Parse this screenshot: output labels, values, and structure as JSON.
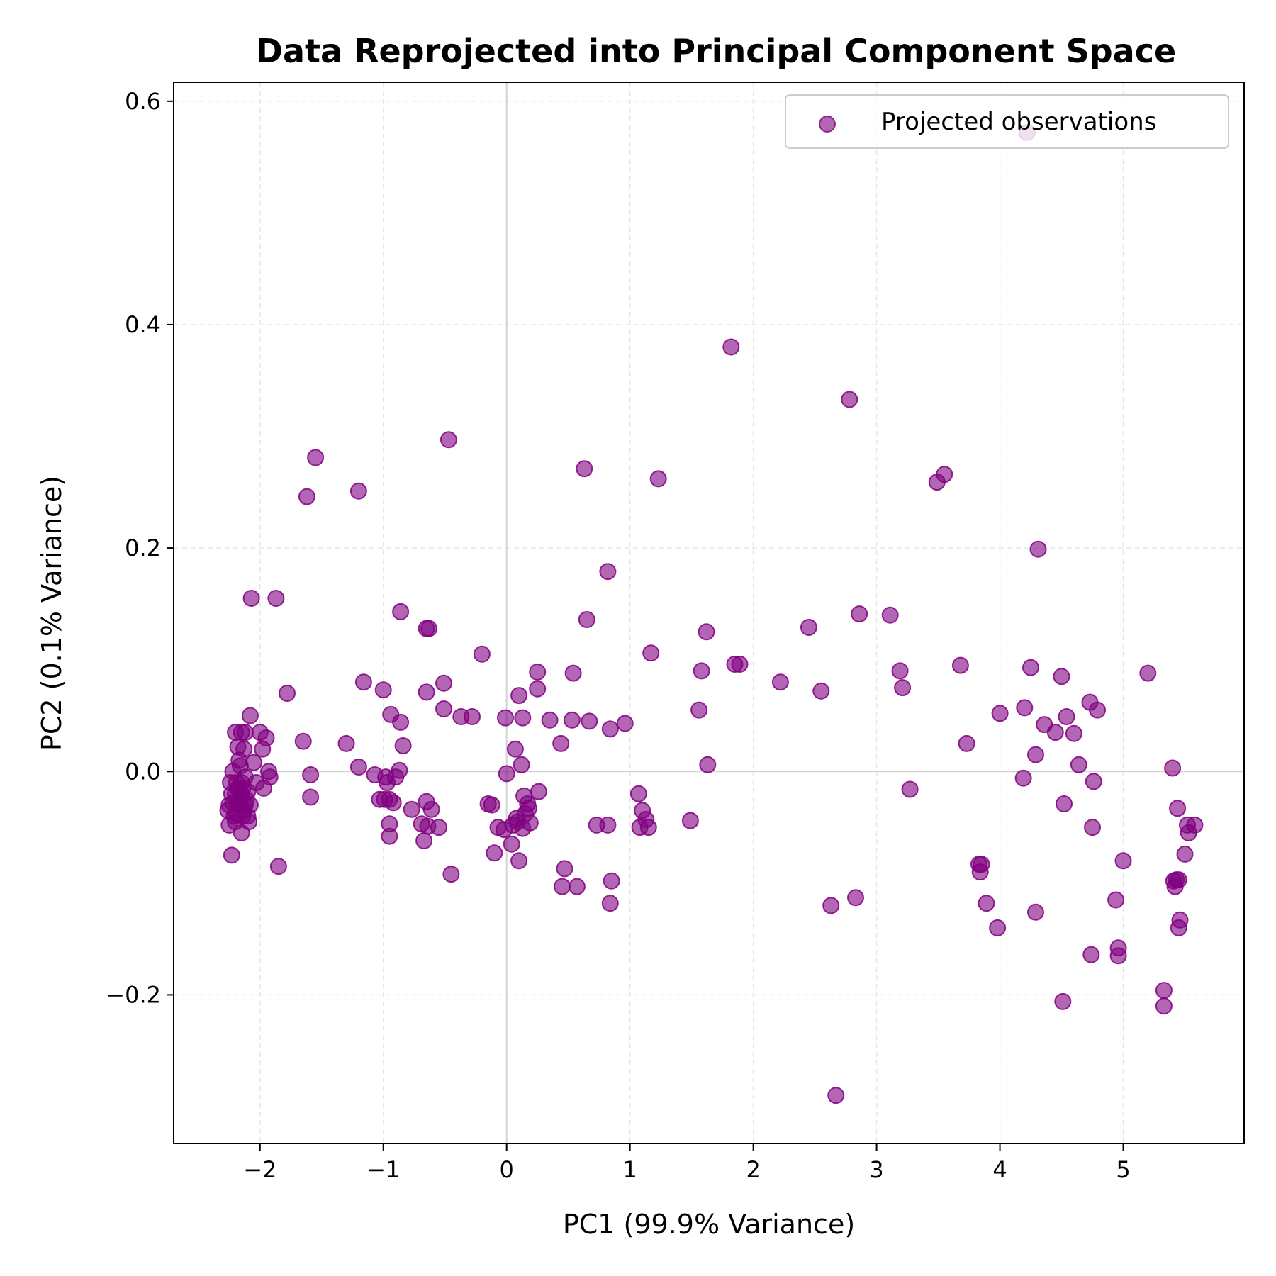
{
  "chart_data": {
    "type": "scatter",
    "title": "Data Reprojected into Principal Component Space",
    "xlabel": "PC1 (99.9% Variance)",
    "ylabel": "PC2 (0.1% Variance)",
    "xlim": [
      -2.7,
      5.98
    ],
    "ylim": [
      -0.333,
      0.617
    ],
    "xticks": [
      -2,
      -1,
      0,
      1,
      2,
      3,
      4,
      5
    ],
    "yticks": [
      -0.2,
      0.0,
      0.2,
      0.4,
      0.6
    ],
    "xtick_labels": [
      "−2",
      "−1",
      "0",
      "1",
      "2",
      "3",
      "4",
      "5"
    ],
    "ytick_labels": [
      "−0.2",
      "0.0",
      "0.2",
      "0.4",
      "0.6"
    ],
    "grid": true,
    "grid_style": "dashed",
    "reference_lines": {
      "x": 0,
      "y": 0
    },
    "legend": {
      "position": "top-right",
      "entries": [
        "Projected observations"
      ]
    },
    "point_color": "#800080",
    "point_alpha": 0.6,
    "series": [
      {
        "name": "Projected observations",
        "points": [
          [
            -2.25,
            -0.03
          ],
          [
            -2.23,
            -0.02
          ],
          [
            -2.21,
            -0.04
          ],
          [
            -2.19,
            -0.01
          ],
          [
            -2.17,
            -0.03
          ],
          [
            -2.15,
            -0.02
          ],
          [
            -2.13,
            -0.035
          ],
          [
            -2.11,
            -0.025
          ],
          [
            -2.24,
            -0.01
          ],
          [
            -2.22,
            0.0
          ],
          [
            -2.2,
            -0.045
          ],
          [
            -2.18,
            -0.015
          ],
          [
            -2.16,
            0.005
          ],
          [
            -2.14,
            -0.04
          ],
          [
            -2.12,
            -0.005
          ],
          [
            -2.26,
            -0.035
          ],
          [
            -2.2,
            -0.02
          ],
          [
            -2.18,
            -0.03
          ],
          [
            -2.16,
            -0.025
          ],
          [
            -2.14,
            -0.015
          ],
          [
            -2.22,
            -0.028
          ],
          [
            -2.19,
            -0.038
          ],
          [
            -2.15,
            -0.01
          ],
          [
            -2.12,
            -0.03
          ],
          [
            -2.17,
            0.01
          ],
          [
            -2.13,
            0.02
          ],
          [
            -2.25,
            -0.048
          ],
          [
            -2.1,
            -0.018
          ],
          [
            -2.08,
            -0.03
          ],
          [
            -2.09,
            -0.045
          ],
          [
            -2.2,
            0.035
          ],
          [
            -2.18,
            0.022
          ],
          [
            -2.15,
            0.035
          ],
          [
            -2.12,
            0.035
          ],
          [
            -2.08,
            0.05
          ],
          [
            -2.1,
            -0.04
          ],
          [
            -2.15,
            -0.055
          ],
          [
            -2.23,
            -0.075
          ],
          [
            -2.05,
            0.008
          ],
          [
            -2.03,
            -0.01
          ],
          [
            -2.0,
            0.035
          ],
          [
            -1.98,
            0.02
          ],
          [
            -1.95,
            0.03
          ],
          [
            -1.97,
            -0.015
          ],
          [
            -1.93,
            0.0
          ],
          [
            -1.92,
            -0.005
          ],
          [
            -2.07,
            0.155
          ],
          [
            -1.87,
            0.155
          ],
          [
            -1.78,
            0.07
          ],
          [
            -1.85,
            -0.085
          ],
          [
            -1.65,
            0.027
          ],
          [
            -1.59,
            -0.003
          ],
          [
            -1.59,
            -0.023
          ],
          [
            -1.62,
            0.246
          ],
          [
            -1.55,
            0.281
          ],
          [
            -1.3,
            0.025
          ],
          [
            -1.2,
            0.004
          ],
          [
            -1.2,
            0.251
          ],
          [
            -1.16,
            0.08
          ],
          [
            -1.07,
            -0.003
          ],
          [
            -1.03,
            -0.025
          ],
          [
            -1.0,
            0.073
          ],
          [
            -0.98,
            -0.005
          ],
          [
            -0.99,
            -0.025
          ],
          [
            -0.97,
            -0.01
          ],
          [
            -0.95,
            -0.025
          ],
          [
            -0.94,
            0.051
          ],
          [
            -0.95,
            -0.058
          ],
          [
            -0.95,
            -0.047
          ],
          [
            -0.92,
            -0.028
          ],
          [
            -0.9,
            -0.005
          ],
          [
            -0.87,
            0.001
          ],
          [
            -0.86,
            0.044
          ],
          [
            -0.84,
            0.023
          ],
          [
            -0.86,
            0.143
          ],
          [
            -0.77,
            -0.034
          ],
          [
            -0.69,
            -0.047
          ],
          [
            -0.67,
            -0.062
          ],
          [
            -0.65,
            -0.027
          ],
          [
            -0.64,
            -0.049
          ],
          [
            -0.61,
            -0.034
          ],
          [
            -0.55,
            -0.05
          ],
          [
            -0.65,
            0.128
          ],
          [
            -0.63,
            0.128
          ],
          [
            -0.65,
            0.071
          ],
          [
            -0.51,
            0.079
          ],
          [
            -0.51,
            0.056
          ],
          [
            -0.47,
            0.297
          ],
          [
            -0.45,
            -0.092
          ],
          [
            -0.37,
            0.049
          ],
          [
            -0.28,
            0.049
          ],
          [
            -0.2,
            0.105
          ],
          [
            -0.15,
            -0.029
          ],
          [
            -0.12,
            -0.03
          ],
          [
            -0.1,
            -0.073
          ],
          [
            -0.07,
            -0.05
          ],
          [
            -0.02,
            -0.052
          ],
          [
            -0.01,
            0.048
          ],
          [
            0.0,
            -0.002
          ],
          [
            0.04,
            -0.065
          ],
          [
            0.05,
            -0.048
          ],
          [
            0.07,
            0.02
          ],
          [
            0.08,
            -0.042
          ],
          [
            0.09,
            -0.045
          ],
          [
            0.1,
            0.068
          ],
          [
            0.1,
            -0.08
          ],
          [
            0.12,
            0.006
          ],
          [
            0.13,
            0.048
          ],
          [
            0.13,
            -0.051
          ],
          [
            0.14,
            -0.022
          ],
          [
            0.15,
            -0.038
          ],
          [
            0.17,
            -0.029
          ],
          [
            0.18,
            -0.033
          ],
          [
            0.19,
            -0.046
          ],
          [
            0.25,
            0.089
          ],
          [
            0.25,
            0.074
          ],
          [
            0.26,
            -0.018
          ],
          [
            0.35,
            0.046
          ],
          [
            0.44,
            0.025
          ],
          [
            0.47,
            -0.087
          ],
          [
            0.45,
            -0.103
          ],
          [
            0.57,
            -0.103
          ],
          [
            0.53,
            0.046
          ],
          [
            0.54,
            0.088
          ],
          [
            0.63,
            0.271
          ],
          [
            0.65,
            0.136
          ],
          [
            0.67,
            0.045
          ],
          [
            0.73,
            -0.048
          ],
          [
            0.82,
            0.179
          ],
          [
            0.82,
            -0.048
          ],
          [
            0.84,
            0.038
          ],
          [
            0.85,
            -0.098
          ],
          [
            0.84,
            -0.118
          ],
          [
            0.96,
            0.043
          ],
          [
            1.07,
            -0.02
          ],
          [
            1.08,
            -0.05
          ],
          [
            1.1,
            -0.035
          ],
          [
            1.13,
            -0.043
          ],
          [
            1.15,
            -0.05
          ],
          [
            1.17,
            0.106
          ],
          [
            1.23,
            0.262
          ],
          [
            1.49,
            -0.044
          ],
          [
            1.56,
            0.055
          ],
          [
            1.58,
            0.09
          ],
          [
            1.62,
            0.125
          ],
          [
            1.63,
            0.006
          ],
          [
            1.82,
            0.38
          ],
          [
            1.85,
            0.096
          ],
          [
            1.89,
            0.096
          ],
          [
            2.22,
            0.08
          ],
          [
            2.45,
            0.129
          ],
          [
            2.55,
            0.072
          ],
          [
            2.63,
            -0.12
          ],
          [
            2.67,
            -0.29
          ],
          [
            2.78,
            0.333
          ],
          [
            2.83,
            -0.113
          ],
          [
            2.86,
            0.141
          ],
          [
            3.11,
            0.14
          ],
          [
            3.19,
            0.09
          ],
          [
            3.21,
            0.075
          ],
          [
            3.27,
            -0.016
          ],
          [
            3.49,
            0.259
          ],
          [
            3.55,
            0.266
          ],
          [
            3.68,
            0.095
          ],
          [
            3.73,
            0.025
          ],
          [
            3.83,
            -0.083
          ],
          [
            3.84,
            -0.09
          ],
          [
            3.85,
            -0.083
          ],
          [
            3.89,
            -0.118
          ],
          [
            3.98,
            -0.14
          ],
          [
            4.0,
            0.052
          ],
          [
            4.19,
            -0.006
          ],
          [
            4.2,
            0.057
          ],
          [
            4.22,
            0.572
          ],
          [
            4.25,
            0.093
          ],
          [
            4.29,
            0.015
          ],
          [
            4.29,
            -0.126
          ],
          [
            4.31,
            0.199
          ],
          [
            4.36,
            0.042
          ],
          [
            4.45,
            0.035
          ],
          [
            4.5,
            0.085
          ],
          [
            4.52,
            -0.029
          ],
          [
            4.54,
            0.049
          ],
          [
            4.51,
            -0.206
          ],
          [
            4.6,
            0.034
          ],
          [
            4.64,
            0.006
          ],
          [
            4.73,
            0.062
          ],
          [
            4.75,
            -0.05
          ],
          [
            4.76,
            -0.009
          ],
          [
            4.74,
            -0.164
          ],
          [
            4.79,
            0.055
          ],
          [
            4.94,
            -0.115
          ],
          [
            4.96,
            -0.158
          ],
          [
            4.96,
            -0.165
          ],
          [
            5.0,
            -0.08
          ],
          [
            5.2,
            0.088
          ],
          [
            5.33,
            -0.196
          ],
          [
            5.33,
            -0.21
          ],
          [
            5.4,
            0.003
          ],
          [
            5.41,
            -0.098
          ],
          [
            5.42,
            -0.103
          ],
          [
            5.43,
            -0.097
          ],
          [
            5.45,
            -0.097
          ],
          [
            5.44,
            -0.033
          ],
          [
            5.46,
            -0.133
          ],
          [
            5.45,
            -0.14
          ],
          [
            5.5,
            -0.074
          ],
          [
            5.52,
            -0.048
          ],
          [
            5.53,
            -0.055
          ],
          [
            5.58,
            -0.048
          ]
        ]
      }
    ]
  }
}
